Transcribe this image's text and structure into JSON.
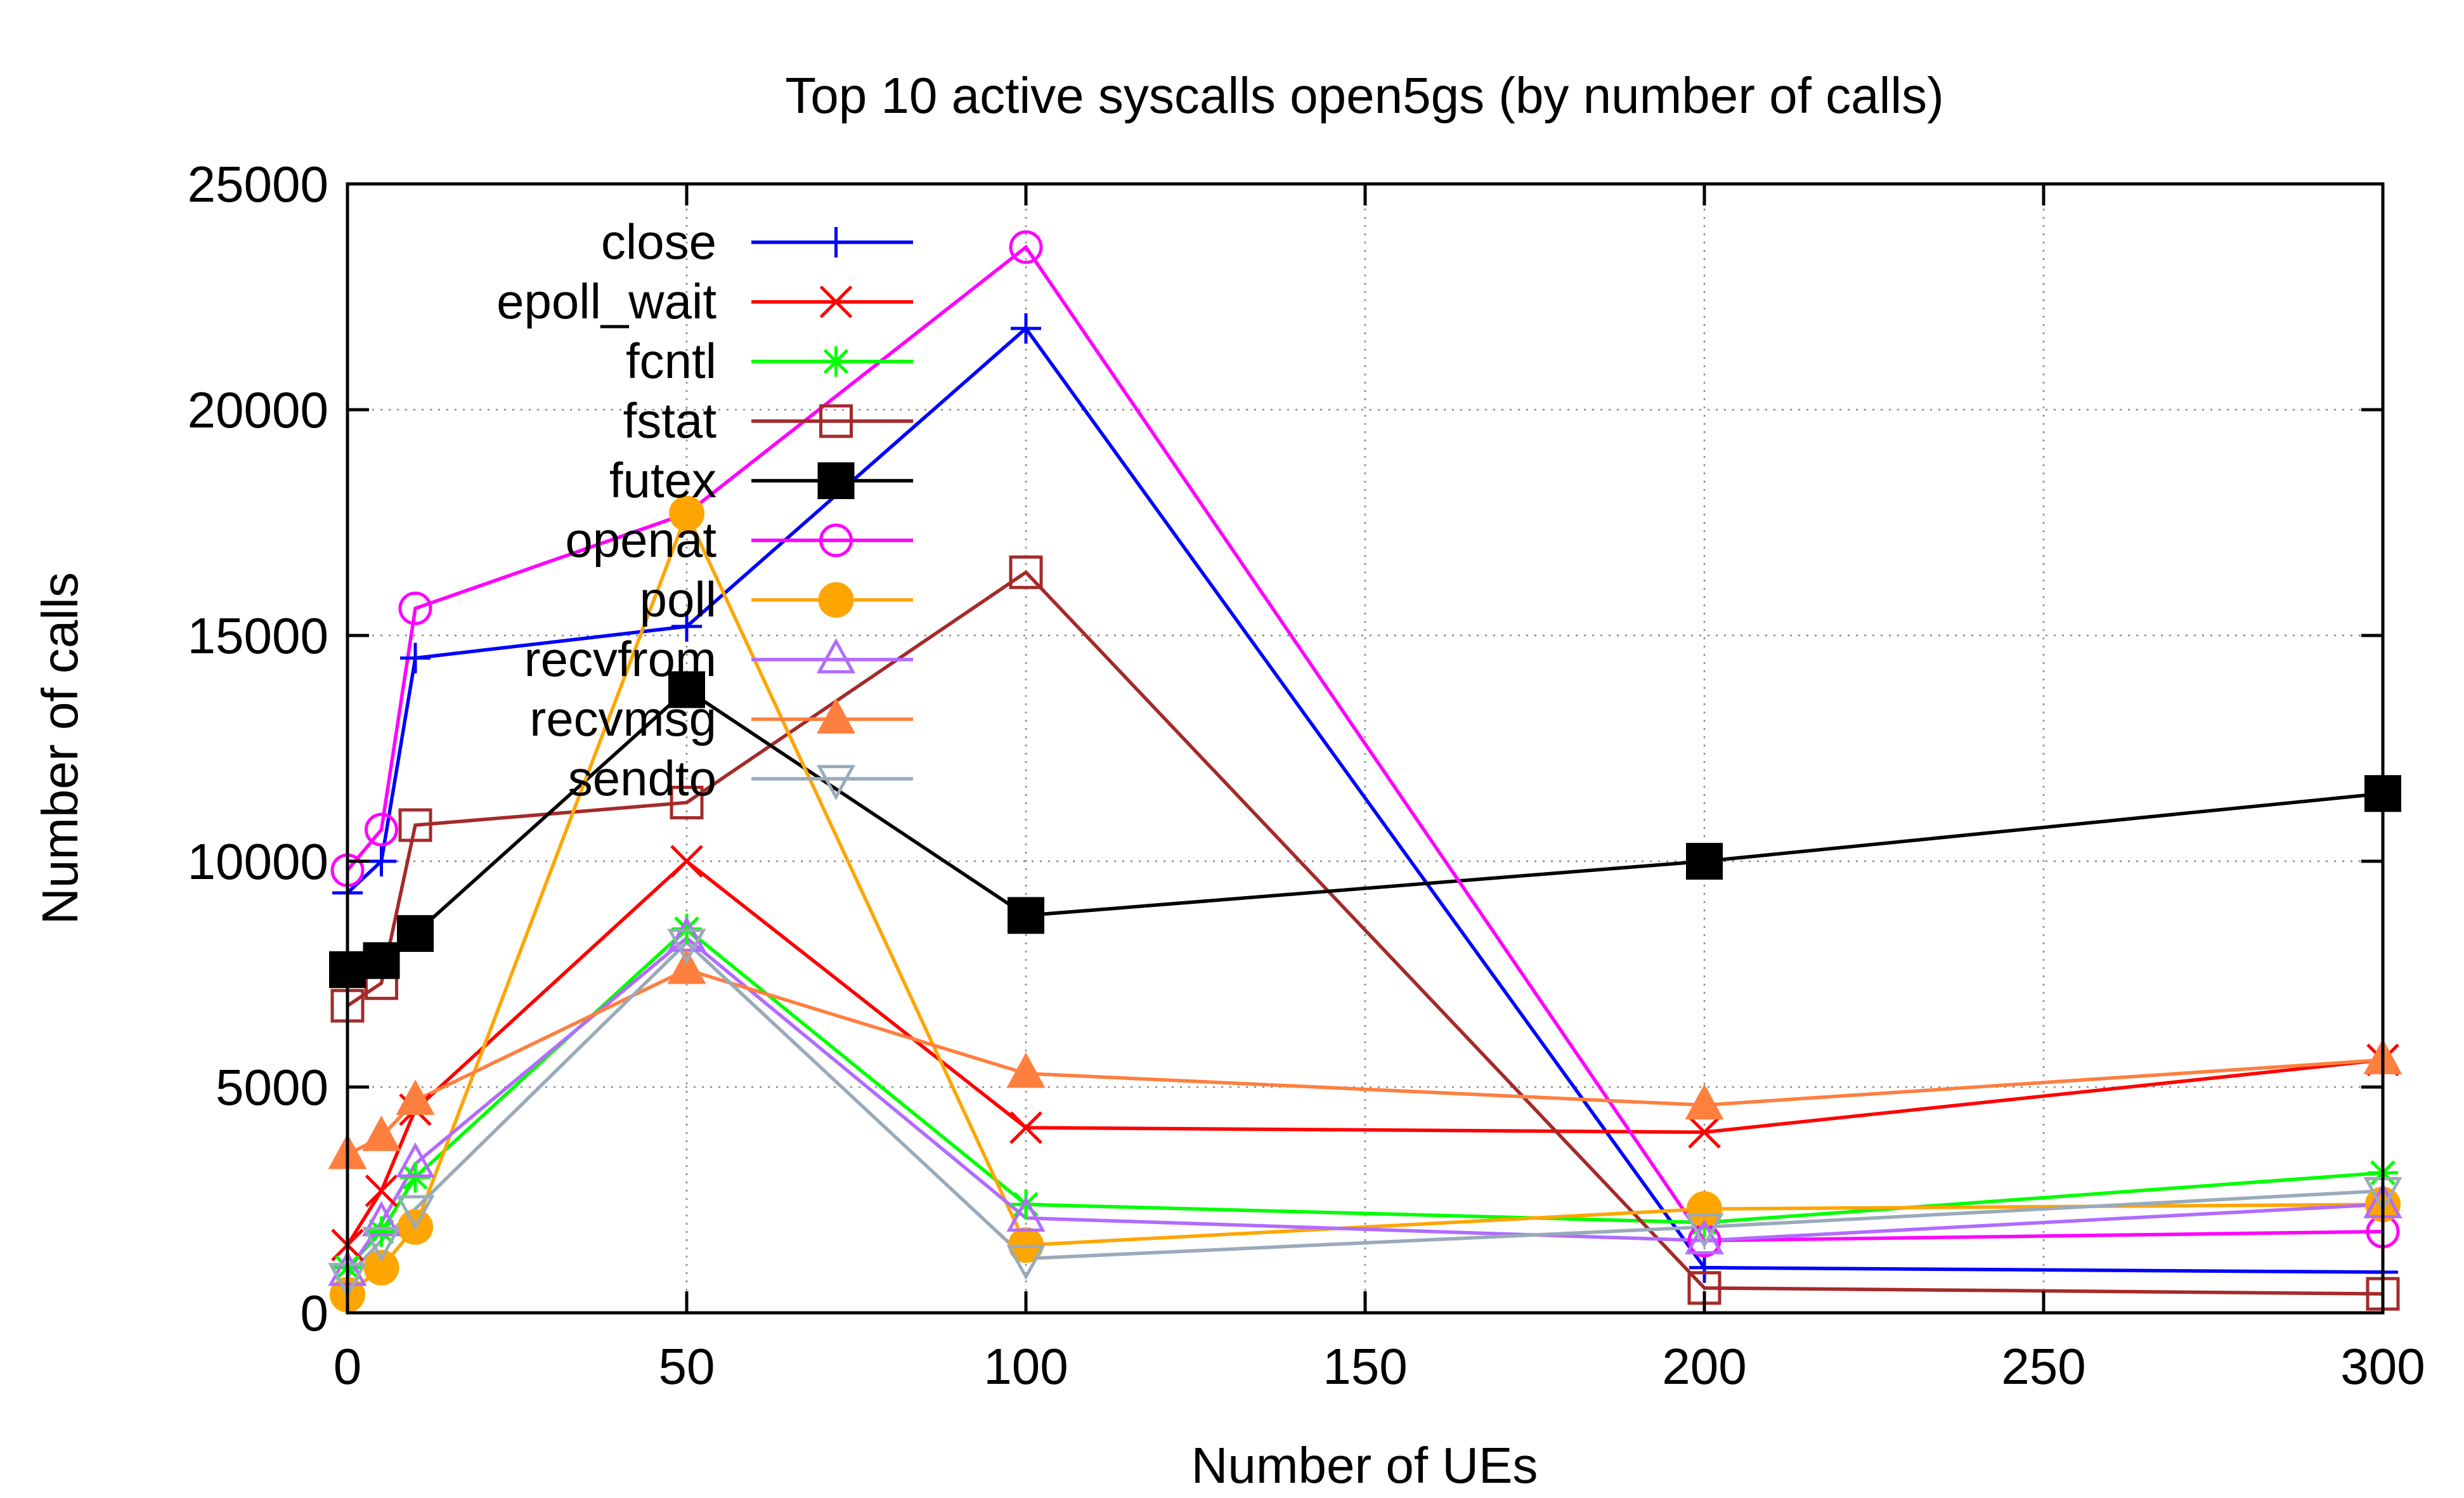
{
  "chart_data": {
    "type": "line",
    "title": "Top 10 active syscalls open5gs (by number of calls)",
    "xlabel": "Number of UEs",
    "ylabel": "Number of calls",
    "xlim": [
      0,
      300
    ],
    "ylim": [
      0,
      25000
    ],
    "xticks": [
      0,
      50,
      100,
      150,
      200,
      250,
      300
    ],
    "yticks": [
      0,
      5000,
      10000,
      15000,
      20000,
      25000
    ],
    "grid": true,
    "legend_position": "top-left",
    "x": [
      0,
      5,
      10,
      50,
      100,
      200,
      300
    ],
    "series": [
      {
        "name": "close",
        "color": "#0000ff",
        "marker": "plus",
        "values": [
          9300,
          10000,
          14500,
          15200,
          21800,
          1000,
          900
        ]
      },
      {
        "name": "epoll_wait",
        "color": "#ff0000",
        "marker": "cross",
        "values": [
          1500,
          2700,
          4500,
          10000,
          4100,
          4000,
          5600
        ]
      },
      {
        "name": "fcntl",
        "color": "#00ff00",
        "marker": "star",
        "values": [
          1000,
          1800,
          3000,
          8500,
          2400,
          2000,
          3100
        ]
      },
      {
        "name": "fstat",
        "color": "#a52a2a",
        "marker": "square-open",
        "values": [
          6800,
          7300,
          10800,
          11300,
          16400,
          550,
          420
        ]
      },
      {
        "name": "futex",
        "color": "#000000",
        "marker": "square-filled",
        "values": [
          7600,
          7800,
          8400,
          13800,
          8800,
          10000,
          11500
        ]
      },
      {
        "name": "openat",
        "color": "#ff00ff",
        "marker": "circle-open",
        "values": [
          9800,
          10700,
          15600,
          17700,
          23600,
          1600,
          1800
        ]
      },
      {
        "name": "poll",
        "color": "#ffa500",
        "marker": "circle-filled",
        "values": [
          400,
          1000,
          1900,
          17700,
          1500,
          2300,
          2400
        ]
      },
      {
        "name": "recvfrom",
        "color": "#b26bff",
        "marker": "triangle-open",
        "values": [
          900,
          2000,
          3300,
          8300,
          2100,
          1600,
          2400
        ]
      },
      {
        "name": "recvmsg",
        "color": "#ff7f3f",
        "marker": "triangle-filled",
        "values": [
          3500,
          3900,
          4700,
          7600,
          5300,
          4600,
          5600
        ]
      },
      {
        "name": "sendto",
        "color": "#99aabb",
        "marker": "triangle-down-open",
        "values": [
          800,
          1600,
          2300,
          8200,
          1200,
          1900,
          2700
        ]
      }
    ]
  }
}
